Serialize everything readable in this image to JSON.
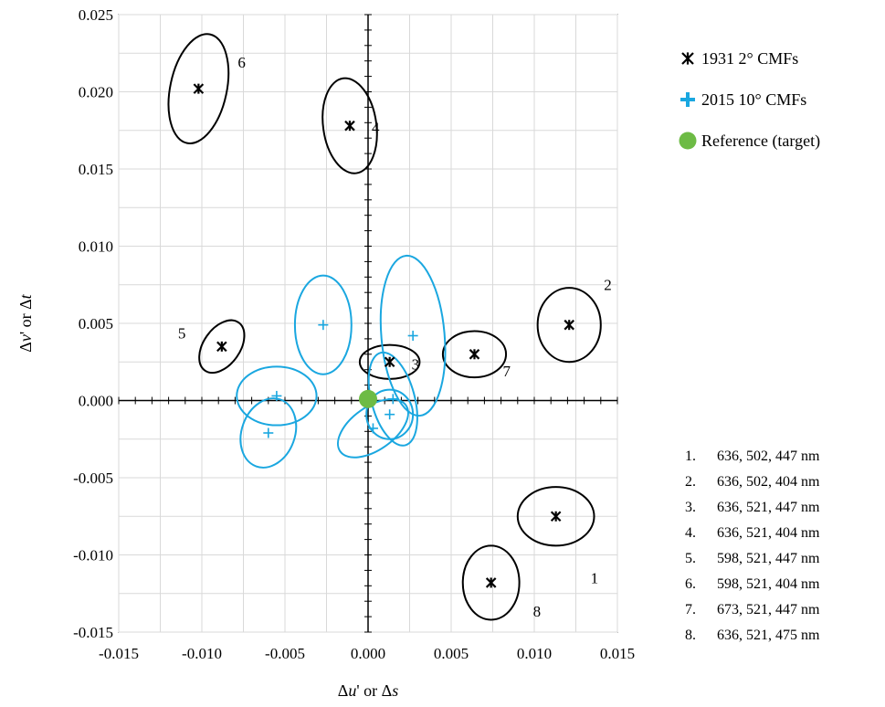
{
  "chart_data": {
    "type": "scatter",
    "xlabel_parts": [
      "Δ",
      "u",
      "' or Δ",
      "s"
    ],
    "ylabel_parts": [
      "Δ",
      "v",
      "' or Δ",
      "t"
    ],
    "xlim": [
      -0.015,
      0.015
    ],
    "ylim": [
      -0.015,
      0.025
    ],
    "x_ticks": [
      -0.015,
      -0.01,
      -0.005,
      0.0,
      0.005,
      0.01,
      0.015
    ],
    "x_tick_labels": [
      "-0.015",
      "-0.010",
      "-0.005",
      "0.000",
      "0.005",
      "0.010",
      "0.015"
    ],
    "y_ticks": [
      -0.015,
      -0.01,
      -0.005,
      0.0,
      0.005,
      0.01,
      0.015,
      0.02,
      0.025
    ],
    "y_tick_labels": [
      "-0.015",
      "-0.010",
      "-0.005",
      "0.000",
      "0.005",
      "0.010",
      "0.015",
      "0.020",
      "0.025"
    ],
    "grid": true,
    "legend_position": "top-right",
    "colors": {
      "cmf1931": "#000000",
      "cmf2015": "#1aa7e0",
      "reference": "#6dbb45"
    },
    "series": [
      {
        "name": "1931 2° CMFs",
        "marker": "asterisk",
        "color": "#000000",
        "points": [
          {
            "label": "1",
            "x": 0.0113,
            "y": -0.0075,
            "rx": 0.0023,
            "ry": 0.0019,
            "angle": 0
          },
          {
            "label": "2",
            "x": 0.0121,
            "y": 0.0049,
            "rx": 0.0019,
            "ry": 0.0024,
            "angle": 0
          },
          {
            "label": "3",
            "x": 0.0013,
            "y": 0.0025,
            "rx": 0.0018,
            "ry": 0.0011,
            "angle": 0
          },
          {
            "label": "4",
            "x": -0.0011,
            "y": 0.0178,
            "rx": 0.0016,
            "ry": 0.0031,
            "angle": -8
          },
          {
            "label": "5",
            "x": -0.0088,
            "y": 0.0035,
            "rx": 0.0011,
            "ry": 0.0019,
            "angle": 35
          },
          {
            "label": "6",
            "x": -0.0102,
            "y": 0.0202,
            "rx": 0.0017,
            "ry": 0.0036,
            "angle": 12
          },
          {
            "label": "7",
            "x": 0.0064,
            "y": 0.003,
            "rx": 0.0019,
            "ry": 0.0015,
            "angle": 0
          },
          {
            "label": "8",
            "x": 0.0074,
            "y": -0.0118,
            "rx": 0.0017,
            "ry": 0.0024,
            "angle": 0
          }
        ]
      },
      {
        "name": "2015 10° CMFs",
        "marker": "plus",
        "color": "#1aa7e0",
        "points": [
          {
            "x": -0.0027,
            "y": 0.0049,
            "rx": 0.0017,
            "ry": 0.0032,
            "angle": 0
          },
          {
            "x": -0.0055,
            "y": 0.0003,
            "rx": 0.0024,
            "ry": 0.0019,
            "angle": 0
          },
          {
            "x": -0.006,
            "y": -0.0021,
            "rx": 0.0016,
            "ry": 0.0023,
            "angle": 20
          },
          {
            "x": 0.0027,
            "y": 0.0042,
            "rx": 0.0019,
            "ry": 0.0052,
            "angle": -5
          },
          {
            "x": 0.0015,
            "y": 0.0001,
            "rx": 0.0013,
            "ry": 0.0031,
            "angle": -15
          },
          {
            "x": 0.0013,
            "y": -0.0009,
            "rx": 0.0014,
            "ry": 0.0016,
            "angle": 0
          },
          {
            "x": 0.0003,
            "y": -0.0018,
            "rx": 0.0013,
            "ry": 0.0026,
            "angle": 55
          }
        ]
      },
      {
        "name": "Reference (target)",
        "marker": "circle",
        "color": "#6dbb45",
        "points": [
          {
            "x": 0.0,
            "y": 0.0001
          }
        ]
      }
    ],
    "annotation_list": [
      {
        "num": "1.",
        "text": "636, 502, 447 nm"
      },
      {
        "num": "2.",
        "text": "636, 502, 404 nm"
      },
      {
        "num": "3.",
        "text": "636, 521, 447 nm"
      },
      {
        "num": "4.",
        "text": "636, 521, 404 nm"
      },
      {
        "num": "5.",
        "text": "598, 521, 447 nm"
      },
      {
        "num": "6.",
        "text": "598, 521, 404 nm"
      },
      {
        "num": "7.",
        "text": "673, 521, 447 nm"
      },
      {
        "num": "8.",
        "text": "636, 521, 475 nm"
      }
    ]
  }
}
